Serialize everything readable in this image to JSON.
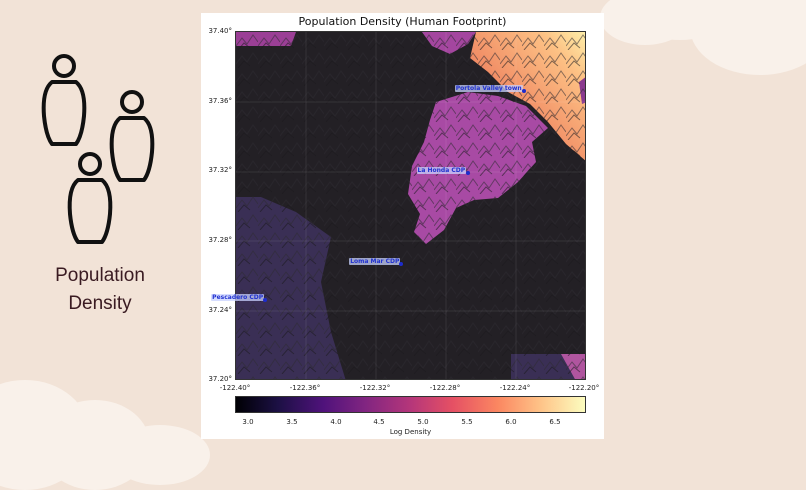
{
  "sidebar": {
    "icon": "people-icon",
    "label_line1": "Population",
    "label_line2": "Density"
  },
  "map": {
    "title": "Population Density (Human Footprint)",
    "x_ticks": [
      "-122.40°",
      "-122.36°",
      "-122.32°",
      "-122.28°",
      "-122.24°",
      "-122.20°"
    ],
    "y_ticks": [
      "37.40°",
      "37.36°",
      "37.32°",
      "37.28°",
      "37.24°",
      "37.20°"
    ],
    "places": [
      {
        "name": "Portola Valley town",
        "lon": -122.2355,
        "lat": 37.3655
      },
      {
        "name": "La Honda CDP",
        "lon": -122.2675,
        "lat": 37.3188
      },
      {
        "name": "Loma Mar CDP",
        "lon": -122.3053,
        "lat": 37.2667
      },
      {
        "name": "Pescadero CDP",
        "lon": -122.3828,
        "lat": 37.2458
      }
    ],
    "extent": {
      "lon": [
        -122.4,
        -122.2
      ],
      "lat": [
        37.2,
        37.4
      ]
    },
    "colorbar": {
      "label": "Log Density",
      "ticks": [
        "3.0",
        "3.5",
        "4.0",
        "4.5",
        "5.0",
        "5.5",
        "6.0",
        "6.5"
      ],
      "range": [
        2.85,
        6.85
      ],
      "colormap": "magma"
    },
    "colors": {
      "background_dark": "#232025",
      "low_purple": "#3b2e58",
      "mid_magenta": "#a64aa3",
      "orange": "#f18d63",
      "light_yellow": "#fde7a4"
    }
  }
}
